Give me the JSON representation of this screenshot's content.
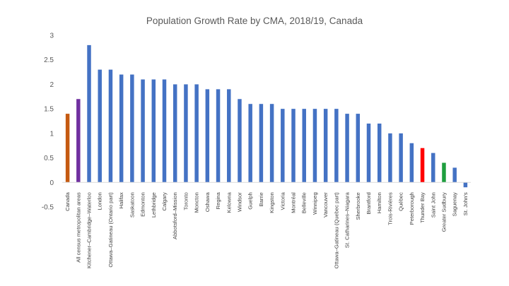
{
  "chart_data": {
    "type": "bar",
    "title": "Population Growth Rate by CMA, 2018/19, Canada",
    "xlabel": "",
    "ylabel": "",
    "ylim": [
      -0.5,
      3
    ],
    "yticks": [
      -0.5,
      0,
      0.5,
      1,
      1.5,
      2,
      2.5,
      3
    ],
    "grid": false,
    "legend": "none",
    "default_color": "#4472C4",
    "categories": [
      "Canada",
      "All census metropolitan areas",
      "Kitchener–Cambridge–Waterloo",
      "London",
      "Ottawa–Gatineau (Ontario part)",
      "Halifax",
      "Saskatoon",
      "Edmonton",
      "Lethbridge",
      "Calgary",
      "Abbotsford–Mission",
      "Toronto",
      "Moncton",
      "Oshawa",
      "Regina",
      "Kelowna",
      "Windsor",
      "Guelph",
      "Barrie",
      "Kingston",
      "Victoria",
      "Montréal",
      "Belleville",
      "Winnipeg",
      "Vancouver",
      "Ottawa–Gatineau (Quebec part)",
      "St. Catharines–Niagara",
      "Sherbrooke",
      "Brantford",
      "Hamilton",
      "Trois-Rivières",
      "Québec",
      "Peterborough",
      "Thunder Bay",
      "Saint John",
      "Greater Sudbury",
      "Saguenay",
      "St. John's"
    ],
    "values": [
      1.4,
      1.7,
      2.8,
      2.3,
      2.3,
      2.2,
      2.2,
      2.1,
      2.1,
      2.1,
      2.0,
      2.0,
      2.0,
      1.9,
      1.9,
      1.9,
      1.7,
      1.6,
      1.6,
      1.6,
      1.5,
      1.5,
      1.5,
      1.5,
      1.5,
      1.5,
      1.4,
      1.4,
      1.2,
      1.2,
      1.0,
      1.0,
      0.8,
      0.7,
      0.6,
      0.4,
      0.3,
      -0.1
    ],
    "highlight_colors": {
      "0": "#C55A11",
      "1": "#7030A0",
      "33": "#FF0000",
      "35": "#1E9E3E"
    }
  }
}
